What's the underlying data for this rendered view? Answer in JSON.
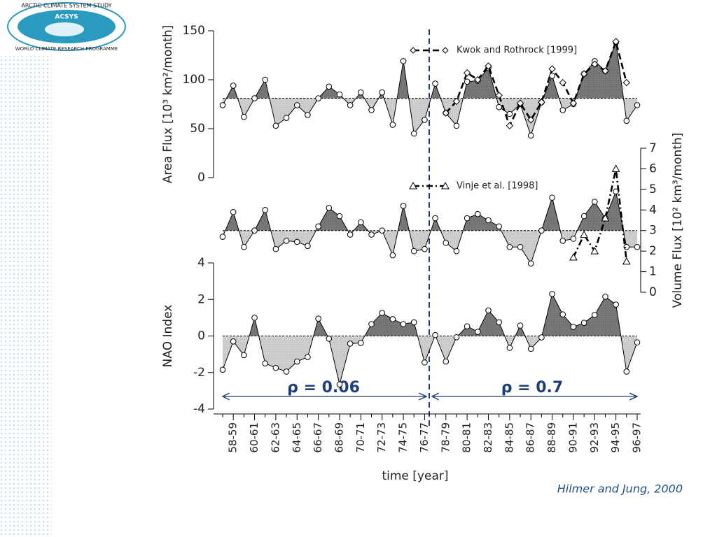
{
  "logo": {
    "top": "ARCTIC CLIMATE SYSTEM STUDY",
    "name": "ACSYS",
    "bottom": "WORLD CLIMATE RESEARCH PROGRAMME"
  },
  "citation": "Hilmer and Jung, 2000",
  "chart_data": [
    {
      "type": "area",
      "ylabel": "Area Flux [10³ km²/month]",
      "ylim": [
        0,
        150
      ],
      "yticks": [
        0,
        50,
        100,
        150
      ],
      "reference_line": 81,
      "series": [
        {
          "color": "#000000",
          "values": [
            74,
            94,
            62,
            81,
            100,
            53,
            61,
            74,
            64,
            81,
            93,
            85,
            74,
            87,
            69,
            87,
            54,
            119,
            45,
            59,
            96,
            66,
            53,
            98,
            99,
            112,
            72,
            65,
            75,
            43,
            77,
            104,
            69,
            75,
            106,
            119,
            109,
            138,
            58,
            74
          ]
        },
        {
          "name": "Kwok and Rothrock [1999]",
          "color": "#000000",
          "values": [
            null,
            null,
            null,
            null,
            null,
            null,
            null,
            null,
            null,
            null,
            null,
            null,
            null,
            null,
            null,
            null,
            null,
            null,
            null,
            null,
            null,
            66,
            78,
            107,
            100,
            114,
            84,
            53,
            76,
            59,
            77,
            111,
            97,
            76,
            106,
            116,
            109,
            139,
            97,
            null
          ]
        }
      ]
    },
    {
      "type": "area",
      "ylabel": "Volume Flux [10² km³/month]",
      "axis": "y2",
      "ylim": [
        0,
        7
      ],
      "yticks": [
        0,
        1,
        2,
        3,
        4,
        5,
        6,
        7
      ],
      "reference_line": 3,
      "series": [
        {
          "color": "#000000",
          "values": [
            2.7,
            3.9,
            2.2,
            3.0,
            4.0,
            2.1,
            2.5,
            2.45,
            2.25,
            3.2,
            4.1,
            3.7,
            2.8,
            3.4,
            2.8,
            3.0,
            1.8,
            4.2,
            2.0,
            2.1,
            3.6,
            2.4,
            2.0,
            3.6,
            3.8,
            3.5,
            3.2,
            2.2,
            2.2,
            1.4,
            3.0,
            4.6,
            2.5,
            2.6,
            3.7,
            4.4,
            3.6,
            4.9,
            2.2,
            2.2
          ]
        },
        {
          "name": "Vinje et al. [1998]",
          "color": "#000000",
          "values": [
            null,
            null,
            null,
            null,
            null,
            null,
            null,
            null,
            null,
            null,
            null,
            null,
            null,
            null,
            null,
            null,
            null,
            null,
            null,
            null,
            null,
            null,
            null,
            null,
            null,
            null,
            null,
            null,
            null,
            null,
            null,
            null,
            null,
            1.7,
            2.8,
            2.0,
            3.6,
            6.0,
            1.5,
            null
          ]
        }
      ]
    },
    {
      "type": "area",
      "ylabel": "NAO Index",
      "xlabel": "time [year]",
      "ylim": [
        -4,
        4
      ],
      "yticks": [
        -4,
        -2,
        0,
        2,
        4
      ],
      "reference_line": 0,
      "categories": [
        null,
        "58-59",
        null,
        "60-61",
        null,
        "62-63",
        null,
        "64-65",
        null,
        "66-67",
        null,
        "68-69",
        null,
        "70-71",
        null,
        "72-73",
        null,
        "74-75",
        null,
        "76-77",
        null,
        "78-79",
        null,
        "80-81",
        null,
        "82-83",
        null,
        "84-85",
        null,
        "86-87",
        null,
        "88-89",
        null,
        "90-91",
        null,
        "92-93",
        null,
        "94-95",
        null,
        "96-97"
      ],
      "series": [
        {
          "color": "#000000",
          "values": [
            -1.85,
            -0.3,
            -1.05,
            1.0,
            -1.5,
            -1.75,
            -1.95,
            -1.4,
            -1.15,
            0.95,
            -0.15,
            -2.65,
            -0.42,
            -0.38,
            0.65,
            1.26,
            0.92,
            0.65,
            0.75,
            -1.45,
            0.05,
            -1.4,
            -0.07,
            0.53,
            0.23,
            1.4,
            0.75,
            -0.65,
            0.57,
            -0.7,
            -0.08,
            2.3,
            1.18,
            0.5,
            0.72,
            1.15,
            2.15,
            1.72,
            -1.95,
            -0.35
          ]
        }
      ],
      "annotations": [
        "ρ = 0.06",
        "ρ = 0.7"
      ]
    }
  ]
}
